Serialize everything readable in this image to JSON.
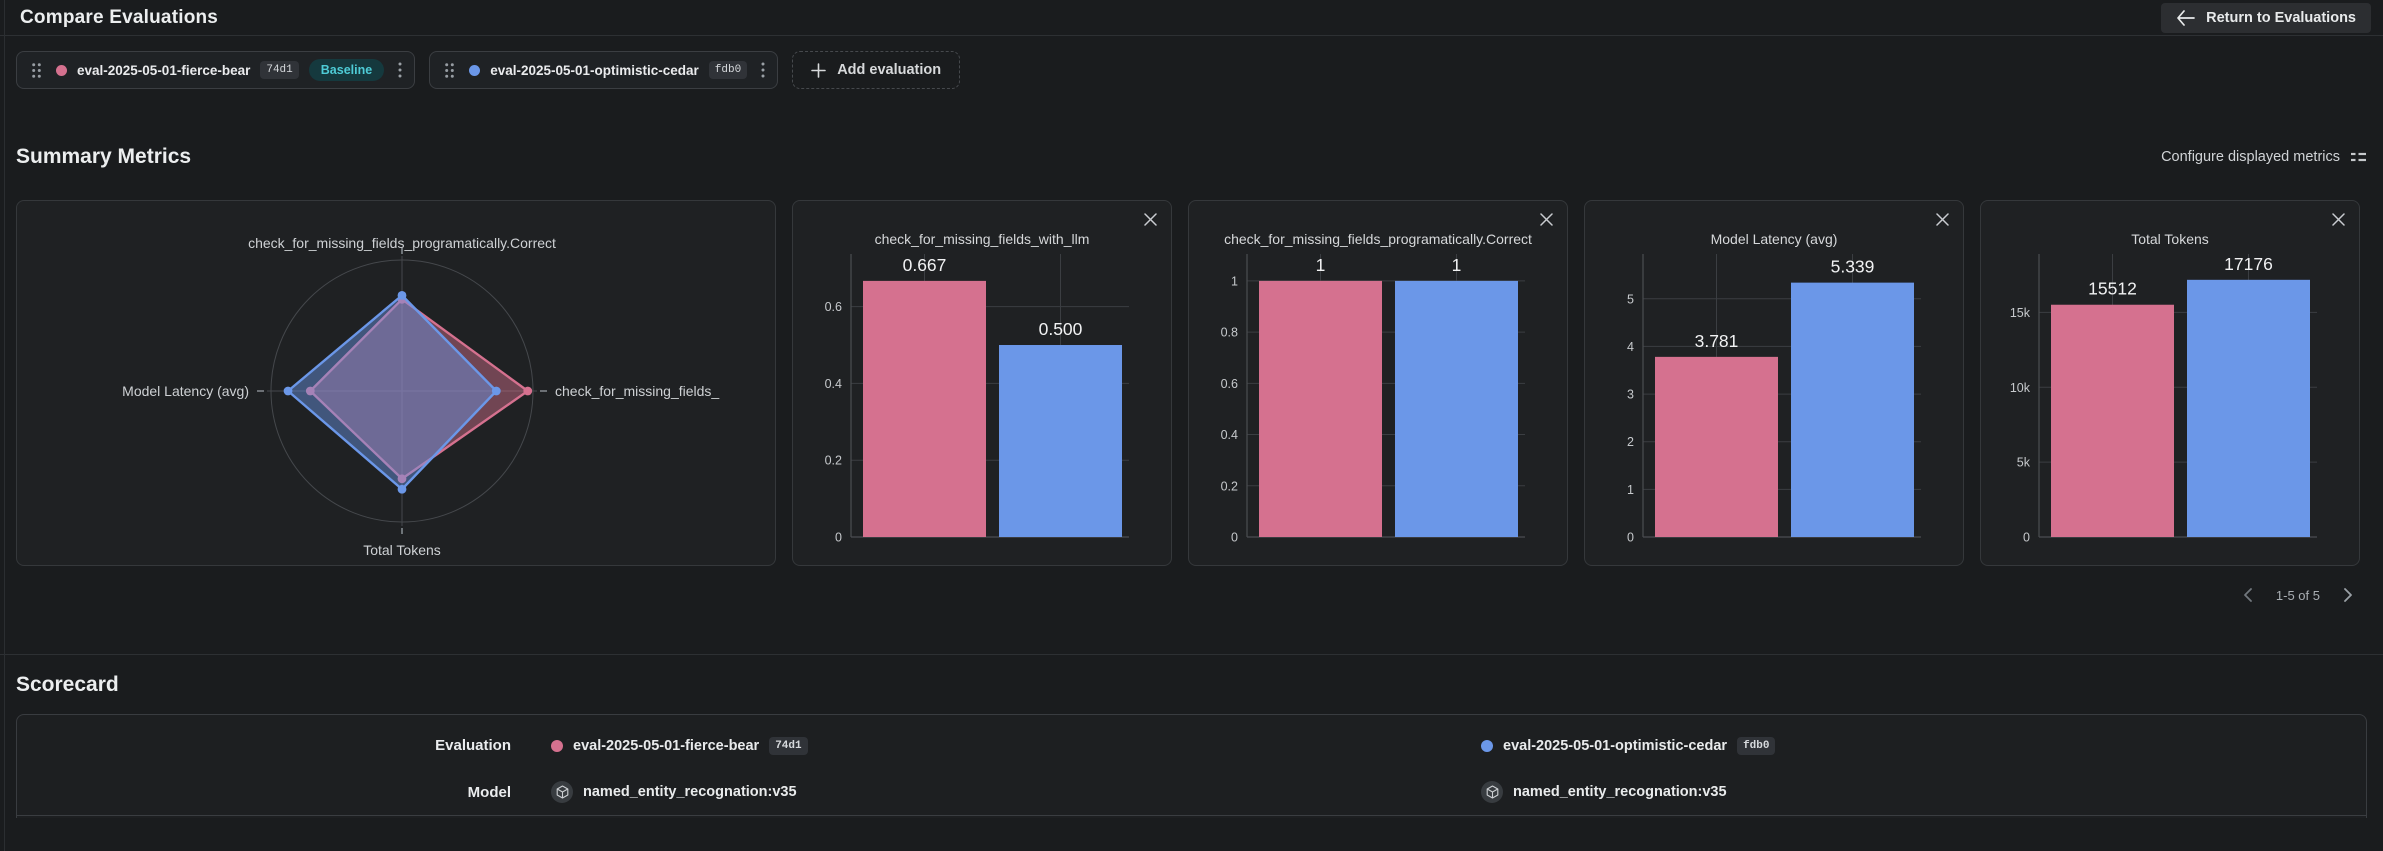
{
  "header": {
    "title": "Compare Evaluations",
    "return_label": "Return to Evaluations"
  },
  "evaluations": [
    {
      "name": "eval-2025-05-01-fierce-bear",
      "id": "74d1",
      "color": "#d5718f",
      "baseline_label": "Baseline"
    },
    {
      "name": "eval-2025-05-01-optimistic-cedar",
      "id": "fdb0",
      "color": "#6b97e8"
    }
  ],
  "add_label": "Add evaluation",
  "summary": {
    "title": "Summary Metrics",
    "configure_label": "Configure displayed metrics"
  },
  "pagination": {
    "label": "1-5 of 5"
  },
  "scorecard": {
    "title": "Scorecard",
    "row_labels": [
      "Evaluation",
      "Model"
    ],
    "models": [
      "named_entity_recognation:v35",
      "named_entity_recognation:v35"
    ]
  },
  "colors": {
    "pink": "#d5718f",
    "blue": "#6b97e8",
    "grid": "#3b3e42",
    "axis": "#4b4e52",
    "tick_text": "#c6c9cc",
    "value_text": "#f1f2f3",
    "radar_label": "#ced1d4"
  },
  "chart_data": [
    {
      "type": "radar",
      "title": "",
      "axes": [
        "check_for_missing_fields_programatically.Correct",
        "check_for_missing_fields_",
        "Total Tokens",
        "Model Latency (avg)"
      ],
      "axis_positions": [
        "top",
        "right",
        "bottom",
        "left"
      ],
      "grid": "single outer circle with cross axes",
      "series": [
        {
          "name": "eval-2025-05-01-fierce-bear",
          "color": "#d5718f",
          "values_norm": [
            0.7,
            0.96,
            0.67,
            0.7
          ]
        },
        {
          "name": "eval-2025-05-01-optimistic-cedar",
          "color": "#6b97e8",
          "values_norm": [
            0.73,
            0.72,
            0.75,
            0.87
          ]
        }
      ]
    },
    {
      "type": "bar",
      "title": "check_for_missing_fields_with_llm",
      "categories": [
        "eval-2025-05-01-fierce-bear",
        "eval-2025-05-01-optimistic-cedar"
      ],
      "values": [
        0.667,
        0.5
      ],
      "value_labels": [
        "0.667",
        "0.500"
      ],
      "colors": [
        "#d5718f",
        "#6b97e8"
      ],
      "ylim": [
        0,
        0.737
      ],
      "yticks": [
        {
          "v": 0,
          "label": "0"
        },
        {
          "v": 0.2,
          "label": "0.2"
        },
        {
          "v": 0.4,
          "label": "0.4"
        },
        {
          "v": 0.6,
          "label": "0.6"
        }
      ]
    },
    {
      "type": "bar",
      "title": "check_for_missing_fields_programatically.Correct",
      "categories": [
        "eval-2025-05-01-fierce-bear",
        "eval-2025-05-01-optimistic-cedar"
      ],
      "values": [
        1,
        1
      ],
      "value_labels": [
        "1",
        "1"
      ],
      "colors": [
        "#d5718f",
        "#6b97e8"
      ],
      "ylim": [
        0,
        1.105
      ],
      "yticks": [
        {
          "v": 0,
          "label": "0"
        },
        {
          "v": 0.2,
          "label": "0.2"
        },
        {
          "v": 0.4,
          "label": "0.4"
        },
        {
          "v": 0.6,
          "label": "0.6"
        },
        {
          "v": 0.8,
          "label": "0.8"
        },
        {
          "v": 1,
          "label": "1"
        }
      ]
    },
    {
      "type": "bar",
      "title": "Model Latency (avg)",
      "categories": [
        "eval-2025-05-01-fierce-bear",
        "eval-2025-05-01-optimistic-cedar"
      ],
      "values": [
        3.781,
        5.339
      ],
      "value_labels": [
        "3.781",
        "5.339"
      ],
      "colors": [
        "#d5718f",
        "#6b97e8"
      ],
      "ylim": [
        0,
        5.94
      ],
      "yticks": [
        {
          "v": 0,
          "label": "0"
        },
        {
          "v": 1,
          "label": "1"
        },
        {
          "v": 2,
          "label": "2"
        },
        {
          "v": 3,
          "label": "3"
        },
        {
          "v": 4,
          "label": "4"
        },
        {
          "v": 5,
          "label": "5"
        }
      ]
    },
    {
      "type": "bar",
      "title": "Total Tokens",
      "categories": [
        "eval-2025-05-01-fierce-bear",
        "eval-2025-05-01-optimistic-cedar"
      ],
      "values": [
        15512,
        17176
      ],
      "value_labels": [
        "15512",
        "17176"
      ],
      "colors": [
        "#d5718f",
        "#6b97e8"
      ],
      "ylim": [
        0,
        18900
      ],
      "yticks": [
        {
          "v": 0,
          "label": "0"
        },
        {
          "v": 5000,
          "label": "5k"
        },
        {
          "v": 10000,
          "label": "10k"
        },
        {
          "v": 15000,
          "label": "15k"
        }
      ]
    }
  ]
}
